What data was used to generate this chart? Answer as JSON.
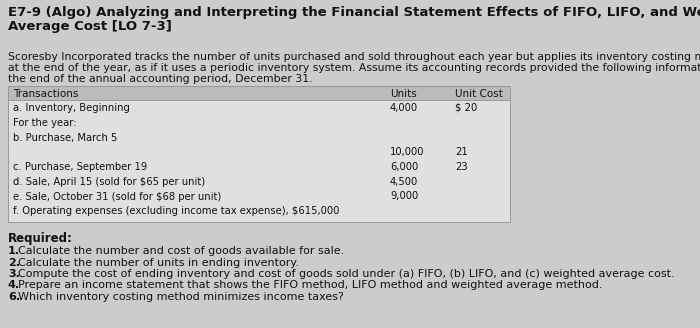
{
  "title_line1": "E7-9 (Algo) Analyzing and Interpreting the Financial Statement Effects of FIFO, LIFO, and Weighted",
  "title_line2": "Average Cost [LO 7-3]",
  "body_line1": "Scoresby Incorporated tracks the number of units purchased and sold throughout each year but applies its inventory costing method",
  "body_line2": "at the end of the year, as if it uses a periodic inventory system. Assume its accounting records provided the following information at",
  "body_line3": "the end of the annual accounting period, December 31.",
  "table_header_col1": "Transactions",
  "table_header_col2": "Units",
  "table_header_col3": "Unit Cost",
  "bg_color": "#cccccc",
  "table_bg": "#e0e0e0",
  "table_header_bg": "#bbbbbb",
  "text_color": "#111111",
  "title_fontsize": 9.5,
  "body_fontsize": 7.8,
  "table_fontsize": 7.5,
  "required_fontsize": 8.0,
  "required_label_fontsize": 8.5
}
